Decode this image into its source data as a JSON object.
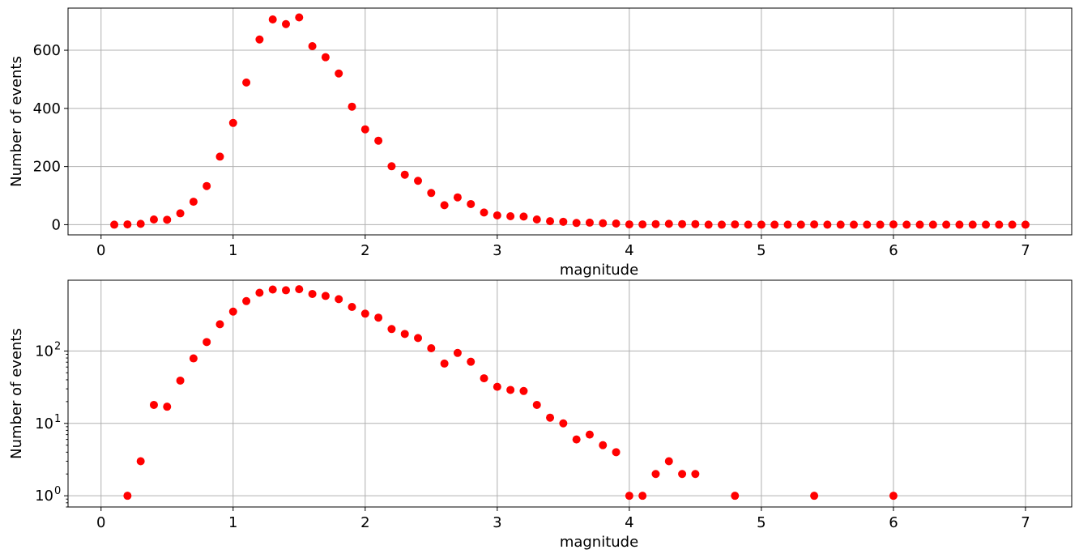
{
  "chart_data": [
    {
      "type": "scatter",
      "xlabel": "magnitude",
      "ylabel": "Number of events",
      "yscale": "linear",
      "xlim": [
        -0.25,
        7.35
      ],
      "ylim": [
        -35,
        745
      ],
      "xticks": [
        0,
        1,
        2,
        3,
        4,
        5,
        6,
        7
      ],
      "yticks": [
        0,
        200,
        400,
        600
      ],
      "xtick_labels": [
        "0",
        "1",
        "2",
        "3",
        "4",
        "5",
        "6",
        "7"
      ],
      "ytick_labels": [
        "0",
        "200",
        "400",
        "600"
      ],
      "grid": true,
      "marker_color": "#ff0000",
      "series": [
        {
          "x": [
            0.1,
            0.2,
            0.3,
            0.4,
            0.5,
            0.6,
            0.7,
            0.8,
            0.9,
            1.0,
            1.1,
            1.2,
            1.3,
            1.4,
            1.5,
            1.6,
            1.7,
            1.8,
            1.9,
            2.0,
            2.1,
            2.2,
            2.3,
            2.4,
            2.5,
            2.6,
            2.7,
            2.8,
            2.9,
            3.0,
            3.1,
            3.2,
            3.3,
            3.4,
            3.5,
            3.6,
            3.7,
            3.8,
            3.9,
            4.0,
            4.1,
            4.2,
            4.3,
            4.4,
            4.5,
            4.6,
            4.7,
            4.8,
            4.9,
            5.0,
            5.1,
            5.2,
            5.3,
            5.4,
            5.5,
            5.6,
            5.7,
            5.8,
            5.9,
            6.0,
            6.1,
            6.2,
            6.3,
            6.4,
            6.5,
            6.6,
            6.7,
            6.8,
            6.9,
            7.0
          ],
          "y": [
            0,
            1,
            3,
            18,
            17,
            39,
            79,
            133,
            234,
            350,
            489,
            637,
            706,
            690,
            713,
            614,
            576,
            520,
            406,
            328,
            289,
            201,
            172,
            151,
            109,
            67,
            94,
            71,
            42,
            32,
            29,
            28,
            18,
            12,
            10,
            6,
            7,
            5,
            4,
            1,
            1,
            2,
            3,
            2,
            2,
            0,
            0,
            1,
            0,
            0,
            0,
            0,
            0,
            1,
            0,
            0,
            0,
            0,
            0,
            1,
            0,
            0,
            0,
            0,
            0,
            0,
            0,
            0,
            0,
            0
          ]
        }
      ]
    },
    {
      "type": "scatter",
      "xlabel": "magnitude",
      "ylabel": "Number of events",
      "yscale": "log",
      "xlim": [
        -0.25,
        7.35
      ],
      "ylim": [
        0.7,
        950
      ],
      "xticks": [
        0,
        1,
        2,
        3,
        4,
        5,
        6,
        7
      ],
      "yticks": [
        1,
        10,
        100
      ],
      "xtick_labels": [
        "0",
        "1",
        "2",
        "3",
        "4",
        "5",
        "6",
        "7"
      ],
      "ytick_labels": [
        "10",
        "10",
        "10"
      ],
      "ytick_exponents": [
        "0",
        "1",
        "2"
      ],
      "grid": true,
      "marker_color": "#ff0000",
      "series": [
        {
          "x": [
            0.2,
            0.3,
            0.4,
            0.5,
            0.6,
            0.7,
            0.8,
            0.9,
            1.0,
            1.1,
            1.2,
            1.3,
            1.4,
            1.5,
            1.6,
            1.7,
            1.8,
            1.9,
            2.0,
            2.1,
            2.2,
            2.3,
            2.4,
            2.5,
            2.6,
            2.7,
            2.8,
            2.9,
            3.0,
            3.1,
            3.2,
            3.3,
            3.4,
            3.5,
            3.6,
            3.7,
            3.8,
            3.9,
            4.0,
            4.1,
            4.2,
            4.3,
            4.4,
            4.5,
            4.8,
            5.4,
            6.0
          ],
          "y": [
            1,
            3,
            18,
            17,
            39,
            79,
            133,
            234,
            350,
            489,
            637,
            706,
            690,
            713,
            614,
            576,
            520,
            406,
            328,
            289,
            201,
            172,
            151,
            109,
            67,
            94,
            71,
            42,
            32,
            29,
            28,
            18,
            12,
            10,
            6,
            7,
            5,
            4,
            1,
            1,
            2,
            3,
            2,
            2,
            1,
            1,
            1
          ]
        }
      ]
    }
  ]
}
